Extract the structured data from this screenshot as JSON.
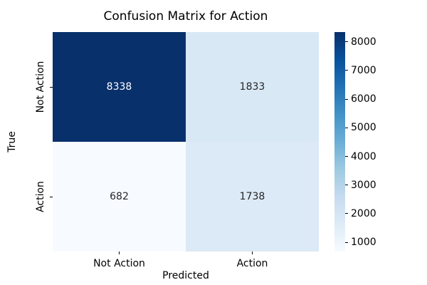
{
  "figure": {
    "background": "#ffffff"
  },
  "chart_data": {
    "type": "heatmap",
    "title": "Confusion Matrix for Action",
    "xlabel": "Predicted",
    "ylabel": "True",
    "x_tick_labels": [
      "Not Action",
      "Action"
    ],
    "y_tick_labels": [
      "Not Action",
      "Action"
    ],
    "matrix": [
      [
        8338,
        1833
      ],
      [
        682,
        1738
      ]
    ],
    "vmin": 682,
    "vmax": 8338,
    "colormap": "Blues",
    "grid": false,
    "legend_position": "right-colorbar",
    "colorbar_ticks": [
      1000,
      2000,
      3000,
      4000,
      5000,
      6000,
      7000,
      8000
    ],
    "cell_colors": [
      [
        "#08306b",
        "#d9e8f5"
      ],
      [
        "#f7fbff",
        "#dce9f6"
      ]
    ],
    "cell_text_colors": [
      [
        "#ffffff",
        "#262626"
      ],
      [
        "#262626",
        "#262626"
      ]
    ],
    "colorbar_gradient": [
      "#f7fbff",
      "#deebf7",
      "#c6dbef",
      "#9ecae1",
      "#6baed6",
      "#4292c6",
      "#2171b5",
      "#08519c",
      "#08306b"
    ]
  }
}
